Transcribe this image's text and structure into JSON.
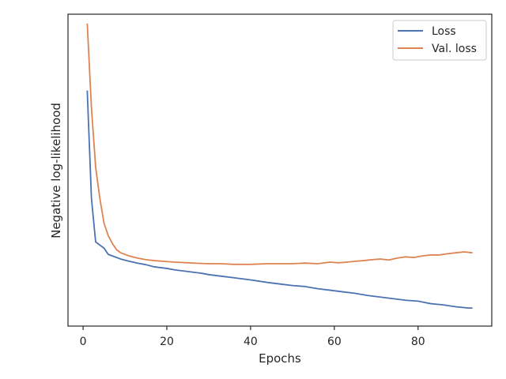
{
  "chart_data": {
    "type": "line",
    "title": "",
    "xlabel": "Epochs",
    "ylabel": "Negative log-likelihood",
    "xlim": [
      -3.6,
      97.6
    ],
    "ylim": [
      0,
      1
    ],
    "x_ticks": [
      0,
      20,
      40,
      60,
      80
    ],
    "y_ticks": [],
    "grid": false,
    "legend": "top-right",
    "series": [
      {
        "name": "Loss",
        "color": "#4c72b0",
        "x": [
          1,
          2,
          3,
          5,
          6,
          7,
          9,
          11,
          13,
          15,
          17,
          20,
          22,
          25,
          28,
          30,
          33,
          36,
          40,
          44,
          47,
          50,
          53,
          56,
          59,
          62,
          65,
          68,
          71,
          74,
          77,
          80,
          83,
          86,
          89,
          92,
          93
        ],
        "y": [
          0.755,
          0.41,
          0.27,
          0.25,
          0.23,
          0.225,
          0.215,
          0.208,
          0.202,
          0.197,
          0.19,
          0.185,
          0.18,
          0.175,
          0.17,
          0.165,
          0.16,
          0.155,
          0.148,
          0.14,
          0.135,
          0.13,
          0.127,
          0.12,
          0.115,
          0.11,
          0.105,
          0.098,
          0.093,
          0.088,
          0.083,
          0.08,
          0.072,
          0.068,
          0.062,
          0.058,
          0.058
        ]
      },
      {
        "name": "Val. loss",
        "color": "#dd8452",
        "x": [
          1,
          2,
          3,
          4,
          5,
          6,
          7,
          8,
          9,
          11,
          13,
          15,
          17,
          20,
          22,
          25,
          28,
          30,
          33,
          36,
          40,
          44,
          47,
          50,
          53,
          56,
          59,
          61,
          63,
          65,
          67,
          69,
          71,
          73,
          75,
          77,
          79,
          81,
          83,
          85,
          87,
          89,
          91,
          93
        ],
        "y": [
          0.97,
          0.7,
          0.51,
          0.41,
          0.33,
          0.29,
          0.265,
          0.245,
          0.235,
          0.225,
          0.218,
          0.213,
          0.21,
          0.207,
          0.205,
          0.203,
          0.201,
          0.2,
          0.2,
          0.198,
          0.198,
          0.2,
          0.2,
          0.2,
          0.202,
          0.2,
          0.205,
          0.203,
          0.205,
          0.208,
          0.21,
          0.213,
          0.215,
          0.212,
          0.218,
          0.222,
          0.22,
          0.225,
          0.228,
          0.228,
          0.232,
          0.235,
          0.238,
          0.235
        ]
      }
    ]
  }
}
